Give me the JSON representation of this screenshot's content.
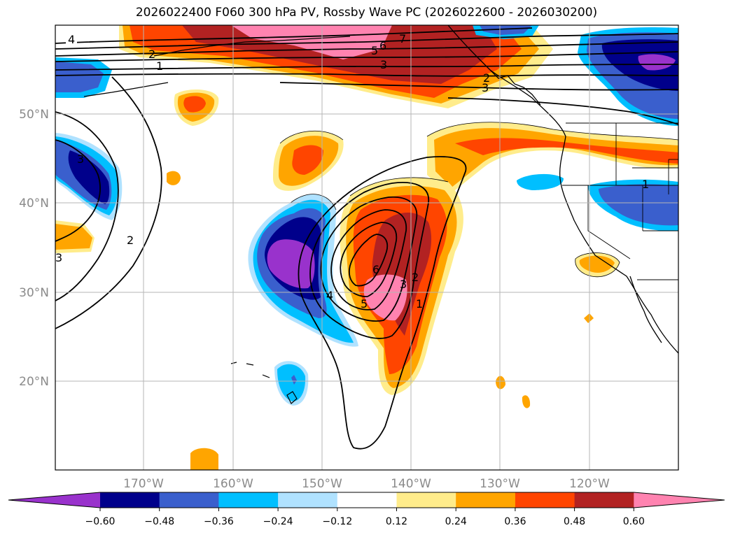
{
  "title": "2026022400 F060 300 hPa PV, Rossby Wave PC (2026022600 - 2026030200)",
  "lat_labels": [
    "50°N",
    "40°N",
    "30°N",
    "20°N"
  ],
  "lon_labels": [
    "170°W",
    "160°W",
    "150°W",
    "140°W",
    "130°W",
    "120°W"
  ],
  "colorbar": {
    "ticks": [
      "−0.60",
      "−0.48",
      "−0.36",
      "−0.24",
      "−0.12",
      "0.12",
      "0.24",
      "0.36",
      "0.48",
      "0.60"
    ],
    "colors": [
      "#9932cc",
      "#00008b",
      "#3a5fcd",
      "#00bfff",
      "#b0e2ff",
      "#ffffff",
      "#ffec8b",
      "#ffa500",
      "#ff4500",
      "#b22222",
      "#ff83b0"
    ]
  },
  "contour_labels": [
    "4",
    "2",
    "1",
    "7",
    "6",
    "5",
    "3",
    "3",
    "2",
    "3",
    "6",
    "5",
    "4",
    "3",
    "2",
    "1",
    "1",
    "2",
    "3"
  ]
}
